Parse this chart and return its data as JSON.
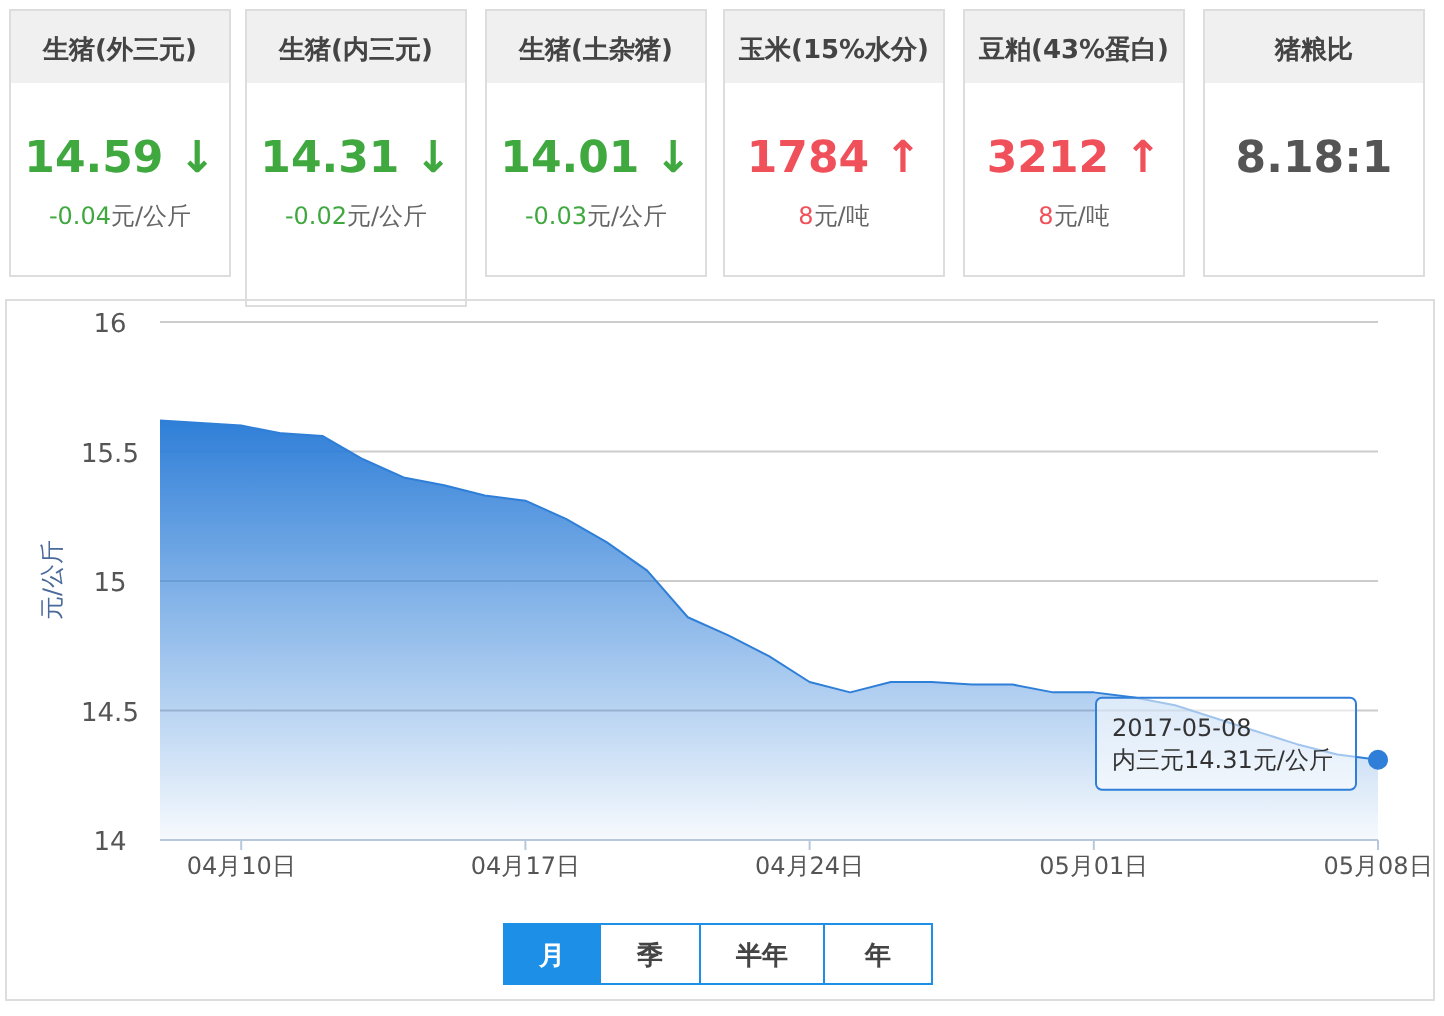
{
  "chart_data": [
    {
      "type": "other",
      "title": "生猪(外三元)",
      "annotations": [
        "14.59 ↓",
        "-0.04",
        "元/公斤"
      ],
      "color": "#3fa83f"
    },
    {
      "type": "other",
      "title": "生猪(内三元)",
      "annotations": [
        "14.31 ↓",
        "-0.02",
        "元/公斤"
      ],
      "color": "#3fa83f"
    },
    {
      "type": "other",
      "title": "生猪(土杂猪)",
      "annotations": [
        "14.01 ↓",
        "-0.03",
        "元/公斤"
      ],
      "color": "#3fa83f"
    },
    {
      "type": "other",
      "title": "玉米(15%水分)",
      "annotations": [
        "1784 ↑",
        "8",
        "元/吨"
      ],
      "color": "#f0505a"
    },
    {
      "type": "other",
      "title": "豆粕(43%蛋白)",
      "annotations": [
        "3212 ↑",
        "8",
        "元/吨"
      ],
      "color": "#f0505a"
    },
    {
      "type": "other",
      "title": "猪粮比",
      "annotations": [
        "8.18:1"
      ],
      "color": "#555555"
    },
    {
      "type": "area",
      "ylabel": "元/公斤",
      "color": "#2f7fd8",
      "grid": "y",
      "x": [
        "2017-04-08",
        "2017-04-09",
        "2017-04-10",
        "2017-04-11",
        "2017-04-12",
        "2017-04-13",
        "2017-04-14",
        "2017-04-15",
        "2017-04-16",
        "2017-04-17",
        "2017-04-18",
        "2017-04-19",
        "2017-04-20",
        "2017-04-21",
        "2017-04-22",
        "2017-04-23",
        "2017-04-24",
        "2017-04-25",
        "2017-04-26",
        "2017-04-27",
        "2017-04-28",
        "2017-04-29",
        "2017-04-30",
        "2017-05-01",
        "2017-05-02",
        "2017-05-03",
        "2017-05-04",
        "2017-05-05",
        "2017-05-06",
        "2017-05-07",
        "2017-05-08"
      ],
      "values": [
        15.62,
        15.61,
        15.6,
        15.57,
        15.56,
        15.47,
        15.4,
        15.37,
        15.33,
        15.31,
        15.24,
        15.15,
        15.04,
        14.86,
        14.79,
        14.71,
        14.61,
        14.57,
        14.61,
        14.61,
        14.6,
        14.6,
        14.57,
        14.57,
        14.55,
        14.52,
        14.47,
        14.42,
        14.37,
        14.33,
        14.31
      ],
      "xlim": [
        "2017-04-08",
        "2017-05-08"
      ],
      "xticks": [
        {
          "value": "2017-04-10",
          "label": "04月10日"
        },
        {
          "value": "2017-04-17",
          "label": "04月17日"
        },
        {
          "value": "2017-04-24",
          "label": "04月24日"
        },
        {
          "value": "2017-05-01",
          "label": "05月01日"
        },
        {
          "value": "2017-05-08",
          "label": "05月08日"
        }
      ],
      "ylim": [
        14,
        16
      ],
      "yticks": [
        14,
        14.5,
        15,
        15.5,
        16
      ],
      "annotations": [
        "2017-05-08",
        "内三元14.31元/公斤"
      ]
    },
    {
      "type": "other",
      "annotations": [
        "月",
        "季",
        "半年",
        "年"
      ],
      "color": "#1e8fe6"
    }
  ]
}
